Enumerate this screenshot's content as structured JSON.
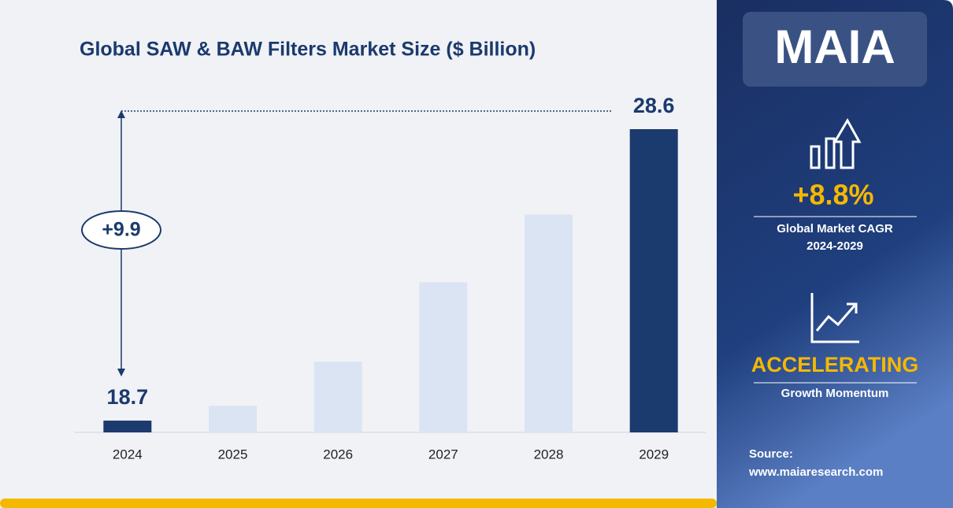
{
  "chart_data": {
    "type": "bar",
    "title": "Global SAW & BAW Filters Market Size ($ Billion)",
    "categories": [
      "2024",
      "2025",
      "2026",
      "2027",
      "2028",
      "2029"
    ],
    "values": [
      18.7,
      19.2,
      20.7,
      23.4,
      25.7,
      28.6
    ],
    "value_labels": [
      "18.7",
      null,
      null,
      null,
      null,
      "28.6"
    ],
    "colors": [
      "#1b3a6d",
      "#dbe4f3",
      "#dbe4f3",
      "#dbe4f3",
      "#dbe4f3",
      "#1b3a6d"
    ],
    "ylim": [
      18.3,
      28.6
    ],
    "annotation": "+9.9"
  },
  "sidebar": {
    "logo": "MAIA",
    "cagr": "+8.8%",
    "cagr_label": "Global Market CAGR",
    "cagr_period": "2024-2029",
    "momentum": "ACCELERATING",
    "momentum_label": "Growth Momentum",
    "source_label": "Source:",
    "source": "www.maiaresearch.com"
  }
}
